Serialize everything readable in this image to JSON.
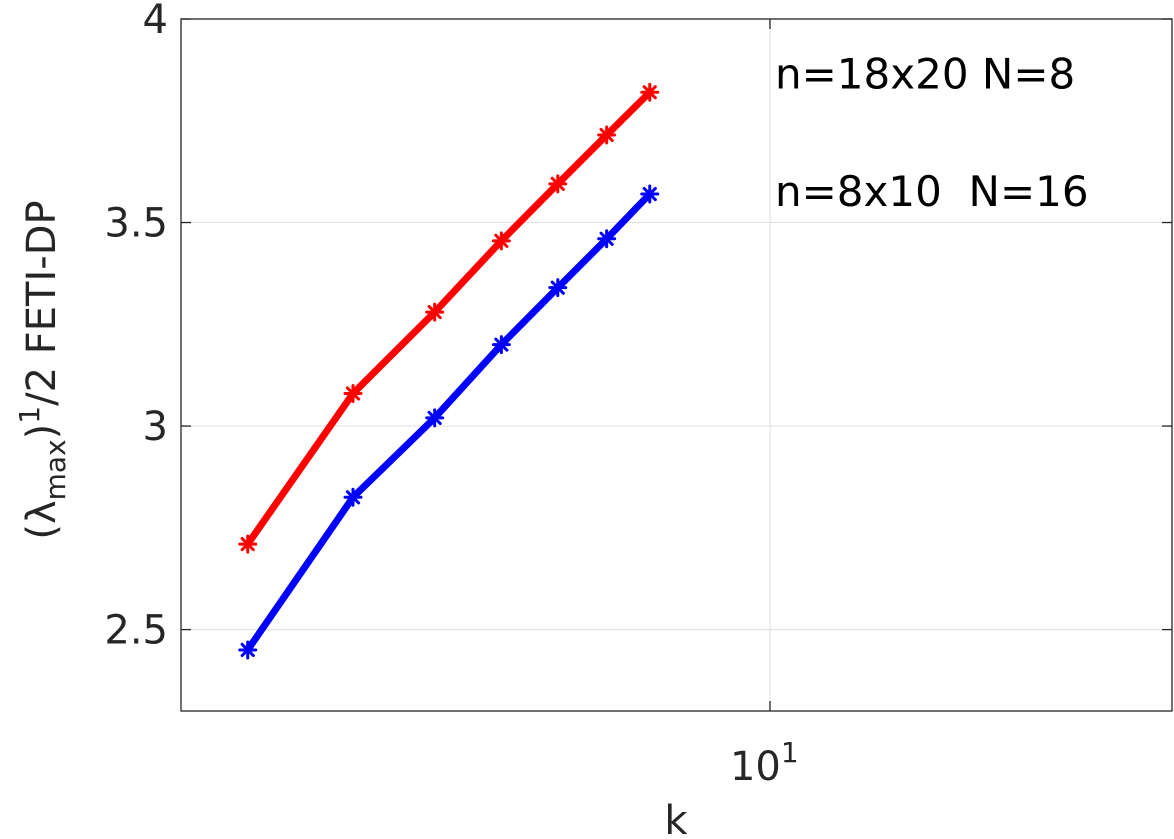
{
  "chart_data": {
    "type": "line",
    "xscale": "log",
    "xlim": [
      2,
      30
    ],
    "ylim": [
      2.3,
      4
    ],
    "grid": true,
    "xlabel": "k",
    "ylabel": {
      "prefix": "(λ",
      "subscript": "max",
      "close": ")",
      "superscript": "1",
      "suffix": "/2 FETI-DP"
    },
    "xticks": [
      {
        "value": 10,
        "base": "10",
        "exponent": "1"
      }
    ],
    "yticks": [
      {
        "value": 2.5,
        "label": "2.5"
      },
      {
        "value": 3,
        "label": "3"
      },
      {
        "value": 3.5,
        "label": "3.5"
      },
      {
        "value": 4,
        "label": "4"
      }
    ],
    "x": [
      2.4,
      3.2,
      4,
      4.8,
      5.6,
      6.4,
      7.2
    ],
    "series": [
      {
        "name": "n=18x20 N=8",
        "color": "#ff0000",
        "values": [
          2.71,
          3.08,
          3.28,
          3.455,
          3.595,
          3.715,
          3.82
        ]
      },
      {
        "name": "n=8x10  N=16",
        "color": "#0000ff",
        "values": [
          2.45,
          2.825,
          3.02,
          3.2,
          3.34,
          3.46,
          3.57
        ]
      }
    ],
    "legend_placement": "top-right"
  }
}
